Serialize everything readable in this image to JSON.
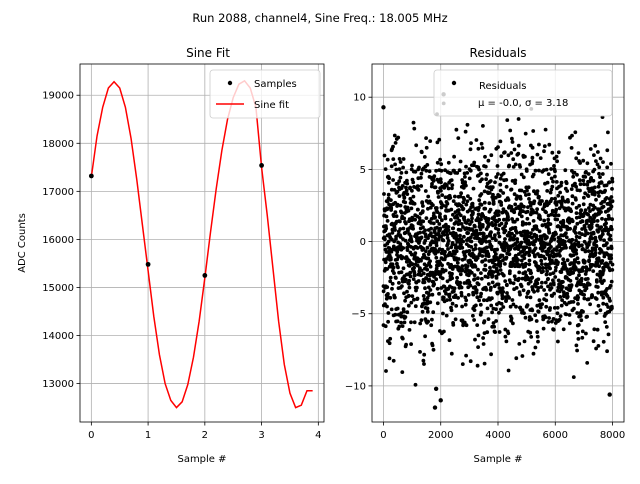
{
  "figure": {
    "suptitle": "Run 2088, channel4, Sine Freq.: 18.005 MHz"
  },
  "chart_data": [
    {
      "type": "line",
      "title": "Sine Fit",
      "xlabel": "Sample #",
      "ylabel": "ADC Counts",
      "xlim": [
        -0.2,
        4.1
      ],
      "ylim": [
        12200,
        19650
      ],
      "xticks": [
        0,
        1,
        2,
        3,
        4
      ],
      "xtick_labels": [
        "0",
        "1",
        "2",
        "3",
        "4"
      ],
      "yticks": [
        13000,
        14000,
        15000,
        16000,
        17000,
        18000,
        19000
      ],
      "ytick_labels": [
        "13000",
        "14000",
        "15000",
        "16000",
        "17000",
        "18000",
        "19000"
      ],
      "grid": true,
      "legend_placement": "top-right",
      "series": [
        {
          "name": "Samples",
          "kind": "scatter",
          "color": "#000000",
          "x": [
            0,
            1,
            2,
            3
          ],
          "y": [
            17320,
            15480,
            15250,
            17540
          ]
        },
        {
          "name": "Sine fit",
          "kind": "line",
          "color": "#ff0000",
          "x": [
            0.0,
            0.1,
            0.2,
            0.3,
            0.4,
            0.5,
            0.6,
            0.7,
            0.8,
            0.9,
            1.0,
            1.1,
            1.2,
            1.3,
            1.4,
            1.5,
            1.6,
            1.7,
            1.8,
            1.9,
            2.0,
            2.1,
            2.2,
            2.3,
            2.4,
            2.5,
            2.6,
            2.7,
            2.8,
            2.9,
            3.0,
            3.1,
            3.2,
            3.3,
            3.4,
            3.5,
            3.6,
            3.7,
            3.8,
            3.9
          ],
          "y": [
            17300,
            18150,
            18750,
            19150,
            19280,
            19150,
            18750,
            18100,
            17250,
            16300,
            15350,
            14400,
            13600,
            13000,
            12650,
            12500,
            12620,
            12980,
            13550,
            14300,
            15200,
            16150,
            17050,
            17850,
            18500,
            18950,
            19230,
            19300,
            19150,
            18750,
            17500,
            16500,
            15400,
            14300,
            13400,
            12800,
            12500,
            12550,
            12850,
            12850
          ]
        }
      ]
    },
    {
      "type": "scatter",
      "title": "Residuals",
      "xlabel": "Sample #",
      "ylabel": "",
      "xlim": [
        -400,
        8400
      ],
      "ylim": [
        -12.5,
        12.3
      ],
      "xticks": [
        0,
        2000,
        4000,
        6000,
        8000
      ],
      "xtick_labels": [
        "0",
        "2000",
        "4000",
        "6000",
        "8000"
      ],
      "yticks": [
        -10,
        -5,
        0,
        5,
        10
      ],
      "ytick_labels": [
        "−10",
        "−5",
        "0",
        "5",
        "10"
      ],
      "grid": true,
      "legend_placement": "top-right",
      "legend_lines": [
        "Residuals",
        "μ = -0.0, σ = 3.18"
      ],
      "series": [
        {
          "name": "Residuals",
          "color": "#000000",
          "n_points": 8000,
          "mean": -0.0,
          "sigma": 3.18,
          "x_range": [
            0,
            8000
          ],
          "y_range": [
            -11.5,
            10.5
          ],
          "notable_points": [
            {
              "x": 0,
              "y": 9.3
            },
            {
              "x": 1800,
              "y": -11.5
            },
            {
              "x": 1840,
              "y": -10.2
            },
            {
              "x": 2100,
              "y": 10.2
            },
            {
              "x": 2000,
              "y": -11.0
            },
            {
              "x": 7900,
              "y": -10.6
            }
          ]
        }
      ]
    }
  ]
}
